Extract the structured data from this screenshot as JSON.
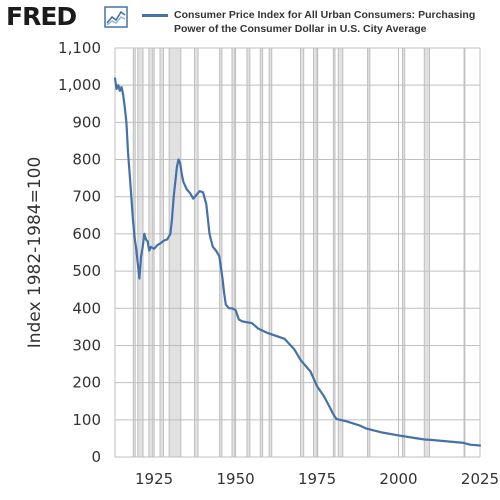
{
  "header": {
    "logo_text": "FRED",
    "legend_label": "Consumer Price Index for All Urban Consumers: Purchasing Power of the Consumer Dollar in U.S. City Average"
  },
  "colors": {
    "series": "#4472a8",
    "recession": "#e1e1e1",
    "grid": "#bfbfbf"
  },
  "chart_data": {
    "type": "line",
    "title": "",
    "xlabel": "",
    "ylabel": "Index 1982-1984=100",
    "xlim": [
      1913,
      2025
    ],
    "ylim": [
      0,
      1100
    ],
    "x_ticks": [
      "1925",
      "1950",
      "1975",
      "2000",
      "2025"
    ],
    "y_ticks": [
      "0",
      "100",
      "200",
      "300",
      "400",
      "500",
      "600",
      "700",
      "800",
      "900",
      "1,000",
      "1,100"
    ],
    "grid": true,
    "recessions": [
      [
        1918.6,
        1919.2
      ],
      [
        1920.0,
        1921.6
      ],
      [
        1923.4,
        1924.6
      ],
      [
        1926.8,
        1927.9
      ],
      [
        1929.6,
        1933.2
      ],
      [
        1937.4,
        1938.5
      ],
      [
        1945.1,
        1945.8
      ],
      [
        1948.9,
        1949.8
      ],
      [
        1953.5,
        1954.4
      ],
      [
        1957.6,
        1958.3
      ],
      [
        1960.3,
        1961.1
      ],
      [
        1969.9,
        1970.9
      ],
      [
        1973.9,
        1975.2
      ],
      [
        1980.0,
        1980.5
      ],
      [
        1981.5,
        1982.9
      ],
      [
        1990.5,
        1991.2
      ],
      [
        2001.2,
        2001.9
      ],
      [
        2007.9,
        2009.5
      ],
      [
        2020.1,
        2020.3
      ]
    ],
    "series": [
      {
        "name": "Consumer Price Index for All Urban Consumers: Purchasing Power of the Consumer Dollar in U.S. City Average",
        "x": [
          1913,
          1913.5,
          1914,
          1914.5,
          1915,
          1915.5,
          1916,
          1916.5,
          1917,
          1917.5,
          1918,
          1918.5,
          1919,
          1919.5,
          1920,
          1920.5,
          1921,
          1921.5,
          1922,
          1922.5,
          1923,
          1923.5,
          1924,
          1925,
          1926,
          1927,
          1928,
          1929,
          1930,
          1930.5,
          1931,
          1931.5,
          1932,
          1932.5,
          1933,
          1933.5,
          1934,
          1935,
          1936,
          1937,
          1938,
          1939,
          1940,
          1941,
          1941.5,
          1942,
          1943,
          1944,
          1945,
          1946,
          1946.5,
          1947,
          1948,
          1949,
          1950,
          1951,
          1952,
          1953,
          1955,
          1957,
          1960,
          1965,
          1968,
          1970,
          1973,
          1975,
          1977,
          1979,
          1980,
          1981,
          1982,
          1984,
          1988,
          1990,
          1995,
          2000,
          2005,
          2008,
          2010,
          2015,
          2020,
          2022,
          2025
        ],
        "values": [
          1018,
          990,
          1000,
          985,
          995,
          975,
          940,
          900,
          820,
          760,
          700,
          640,
          590,
          560,
          520,
          480,
          540,
          565,
          600,
          585,
          580,
          555,
          565,
          560,
          570,
          575,
          582,
          585,
          600,
          640,
          700,
          740,
          780,
          800,
          790,
          760,
          740,
          720,
          710,
          695,
          705,
          715,
          712,
          680,
          640,
          600,
          565,
          555,
          540,
          480,
          440,
          410,
          400,
          400,
          395,
          370,
          365,
          363,
          360,
          345,
          333,
          318,
          290,
          260,
          230,
          190,
          165,
          132,
          115,
          102,
          100,
          96,
          85,
          77,
          66,
          58,
          51,
          47,
          46,
          42,
          38,
          33,
          31
        ]
      }
    ]
  }
}
